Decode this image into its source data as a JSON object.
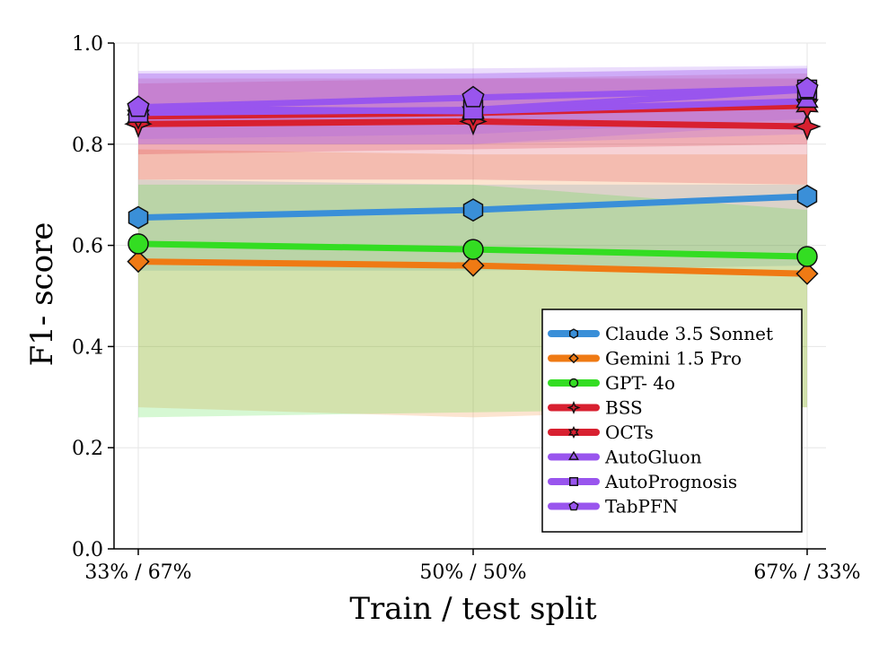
{
  "chart_data": {
    "type": "line",
    "title": "",
    "xlabel": "Train / test split",
    "ylabel": "F1- score",
    "categories": [
      "33% / 67%",
      "50% / 50%",
      "67% / 33%"
    ],
    "ylim": [
      0.0,
      1.0
    ],
    "yticks": [
      "0.0",
      "0.2",
      "0.4",
      "0.6",
      "0.8",
      "1.0"
    ],
    "grid": true,
    "legend_position": "bottom-right",
    "series": [
      {
        "name": "Claude 3.5 Sonnet",
        "color": "#3a8fd8",
        "marker": "hexagon",
        "values": [
          0.655,
          0.67,
          0.697
        ],
        "band_low": [
          0.55,
          0.55,
          0.56
        ],
        "band_high": [
          0.73,
          0.72,
          0.72
        ]
      },
      {
        "name": "Gemini 1.5 Pro",
        "color": "#ef7a14",
        "marker": "diamond",
        "values": [
          0.568,
          0.56,
          0.544
        ],
        "band_low": [
          0.28,
          0.26,
          0.28
        ],
        "band_high": [
          0.79,
          0.78,
          0.78
        ]
      },
      {
        "name": "GPT- 4o",
        "color": "#33dd22",
        "marker": "circle",
        "values": [
          0.603,
          0.592,
          0.578
        ],
        "band_low": [
          0.26,
          0.27,
          0.28
        ],
        "band_high": [
          0.72,
          0.72,
          0.67
        ]
      },
      {
        "name": "BSS",
        "color": "#d82030",
        "marker": "star4",
        "values": [
          0.84,
          0.845,
          0.835
        ],
        "band_low": [
          0.73,
          0.73,
          0.72
        ],
        "band_high": [
          0.92,
          0.93,
          0.93
        ]
      },
      {
        "name": "OCTs",
        "color": "#d82030",
        "marker": "star6",
        "values": [
          0.855,
          0.862,
          0.876
        ],
        "band_low": [
          0.78,
          0.79,
          0.8
        ],
        "band_high": [
          0.93,
          0.93,
          0.94
        ]
      },
      {
        "name": "AutoGluon",
        "color": "#9955ee",
        "marker": "triangle",
        "values": [
          0.87,
          0.865,
          0.885
        ],
        "band_low": [
          0.8,
          0.8,
          0.82
        ],
        "band_high": [
          0.94,
          0.94,
          0.95
        ]
      },
      {
        "name": "AutoPrognosis",
        "color": "#9955ee",
        "marker": "square",
        "values": [
          0.862,
          0.868,
          0.908
        ],
        "band_low": [
          0.8,
          0.8,
          0.84
        ],
        "band_high": [
          0.94,
          0.94,
          0.95
        ]
      },
      {
        "name": "TabPFN",
        "color": "#9955ee",
        "marker": "pentagon",
        "values": [
          0.873,
          0.892,
          0.91
        ],
        "band_low": [
          0.81,
          0.82,
          0.85
        ],
        "band_high": [
          0.945,
          0.95,
          0.955
        ]
      }
    ]
  }
}
